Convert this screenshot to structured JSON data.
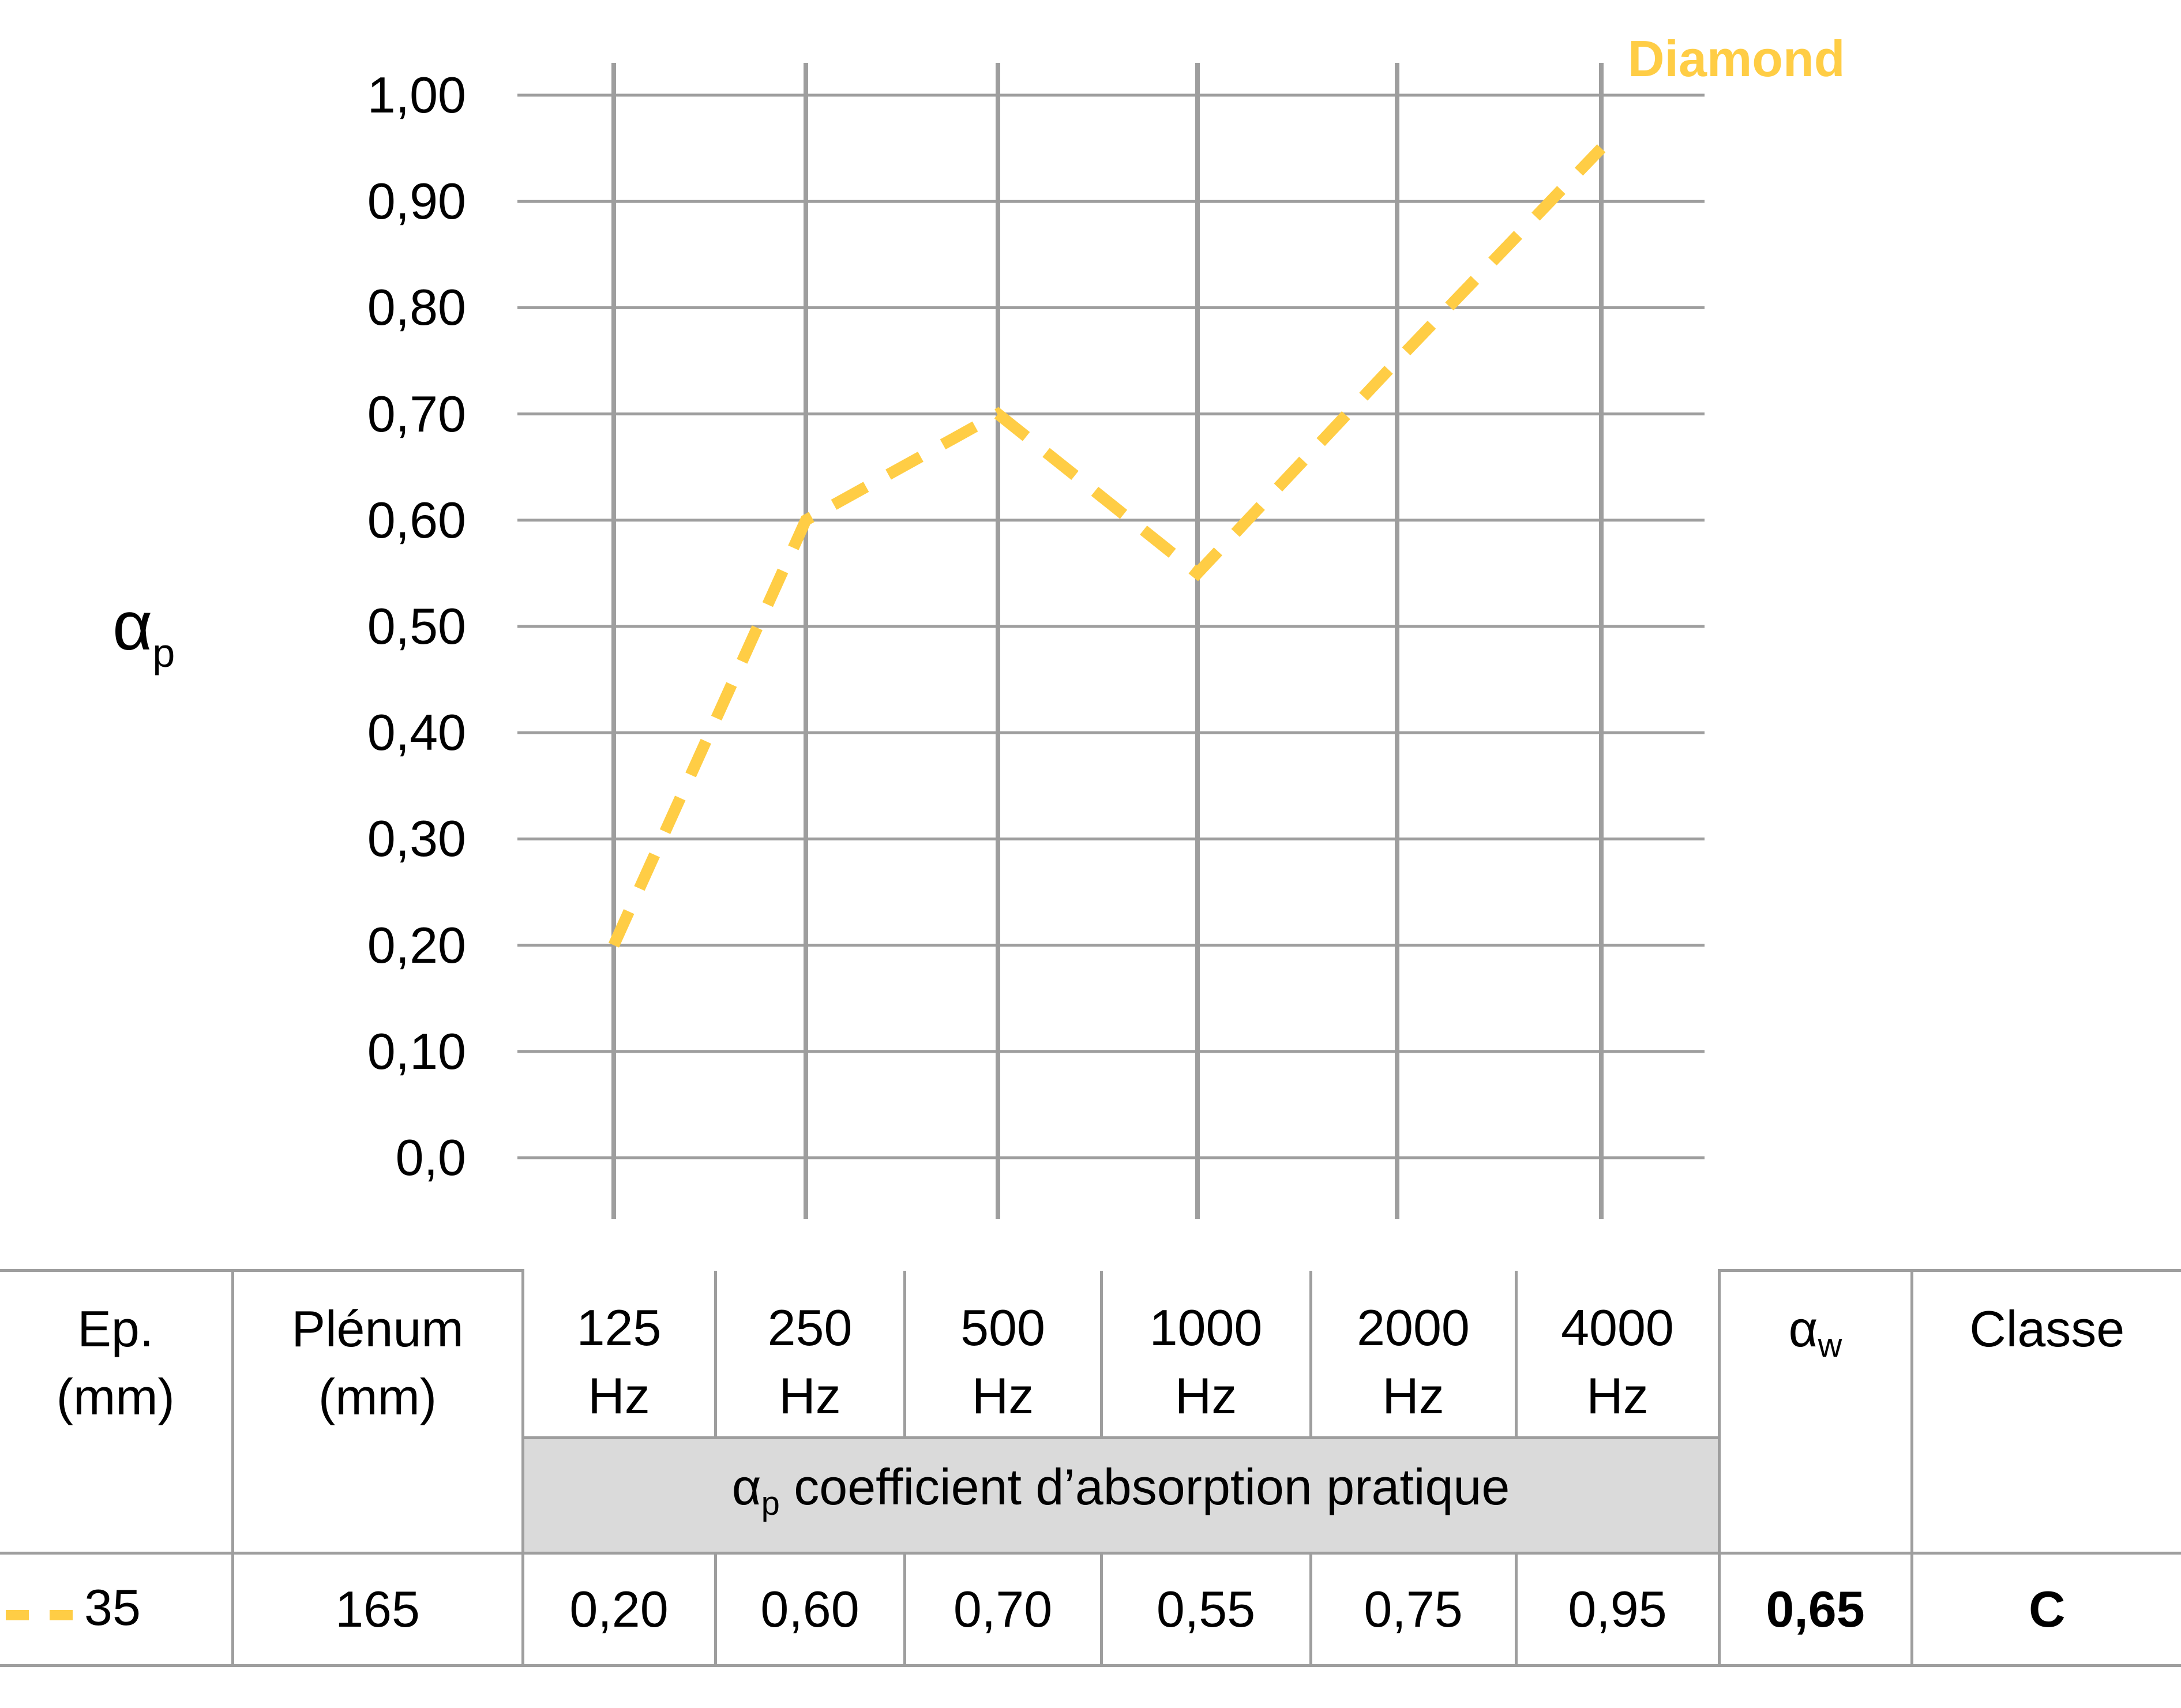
{
  "chart_data": {
    "type": "line",
    "title": "",
    "series_label": "Diamond",
    "xlabel": "",
    "ylabel": "αp",
    "ylim": [
      0.0,
      1.0
    ],
    "grid": true,
    "categories": [
      "125 Hz",
      "250 Hz",
      "500 Hz",
      "1000 Hz",
      "2000 Hz",
      "4000 Hz"
    ],
    "series": [
      {
        "name": "Diamond",
        "color": "#ffcd45",
        "style": "dashed",
        "values": [
          0.2,
          0.6,
          0.7,
          0.55,
          0.75,
          0.95
        ]
      }
    ],
    "yticks": [
      "1,00",
      "0,90",
      "0,80",
      "0,70",
      "0,60",
      "0,50",
      "0,40",
      "0,30",
      "0,20",
      "0,10",
      "0,0"
    ]
  },
  "colors": {
    "series": "#ffcd45",
    "grid": "#9e9e9e",
    "band": "#dadada"
  },
  "axis": {
    "ylabel_main": "α",
    "ylabel_sub": "p"
  },
  "table": {
    "headers": {
      "ep_line1": "Ep.",
      "ep_line2": "(mm)",
      "plenum_line1": "Plénum",
      "plenum_line2": "(mm)",
      "freqs": [
        {
          "value": "125",
          "unit": "Hz"
        },
        {
          "value": "250",
          "unit": "Hz"
        },
        {
          "value": "500",
          "unit": "Hz"
        },
        {
          "value": "1000",
          "unit": "Hz"
        },
        {
          "value": "2000",
          "unit": "Hz"
        },
        {
          "value": "4000",
          "unit": "Hz"
        }
      ],
      "aw_main": "α",
      "aw_sub": "w",
      "classe": "Classe",
      "band_main": "α",
      "band_sub": "p",
      "band_text": " coefficient d’absorption pratique"
    },
    "rows": [
      {
        "ep": "35",
        "plenum": "165",
        "values": [
          "0,20",
          "0,60",
          "0,70",
          "0,55",
          "0,75",
          "0,95"
        ],
        "aw": "0,65",
        "classe": "C"
      }
    ]
  }
}
